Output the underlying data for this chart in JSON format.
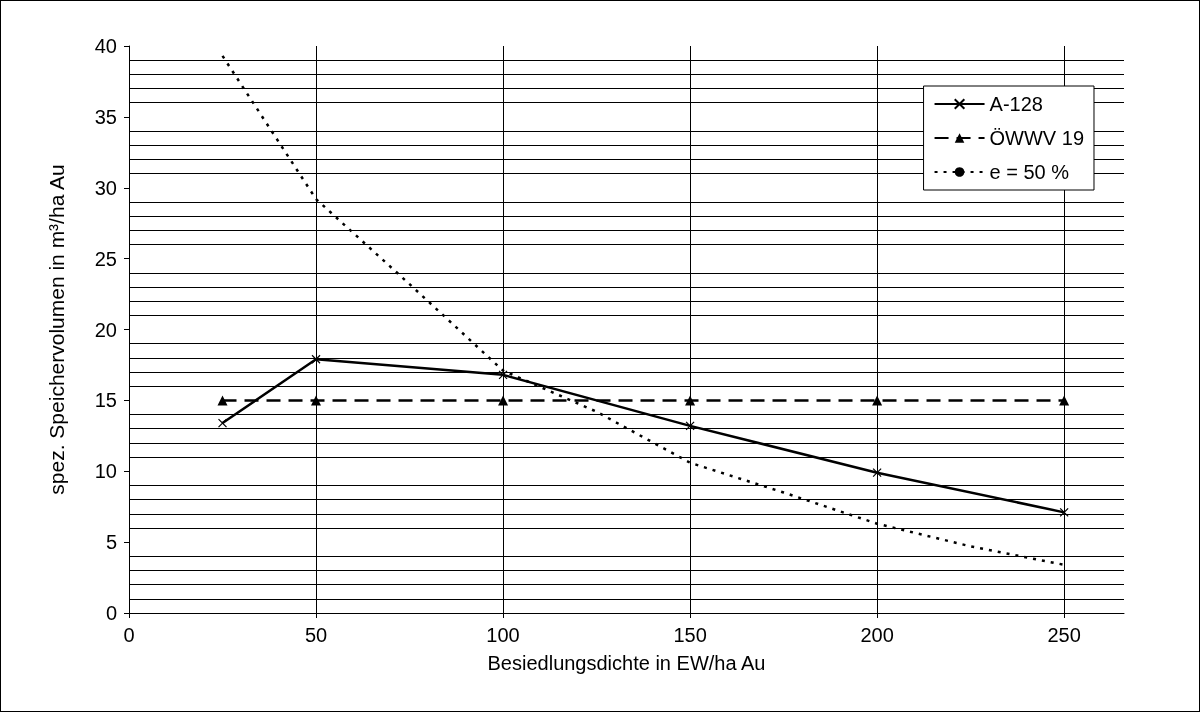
{
  "chart_data": {
    "type": "line",
    "xlabel": "Besiedlungsdichte in EW/ha Au",
    "ylabel": "spez. Speichervolumen in m³/ha Au",
    "xlim": [
      0,
      266
    ],
    "xticks": [
      0,
      50,
      100,
      150,
      200,
      250
    ],
    "ylim": [
      0,
      40
    ],
    "yticks": [
      0,
      5,
      10,
      15,
      20,
      25,
      30,
      35,
      40
    ],
    "grid": true,
    "legend": "top right",
    "series": [
      {
        "name": "A-128",
        "color": "#000000",
        "marker": "cross",
        "line_style": "solid",
        "x": [
          25,
          50,
          100,
          150,
          200,
          250
        ],
        "values": [
          13.4,
          17.9,
          16.8,
          13.2,
          9.9,
          7.1
        ]
      },
      {
        "name": "ÖWWV 19",
        "color": "#000000",
        "marker": "triangle",
        "line_style": "dashed",
        "x": [
          25,
          50,
          100,
          150,
          200,
          250
        ],
        "values": [
          15,
          15,
          15,
          15,
          15,
          15
        ]
      },
      {
        "name": "e = 50 %",
        "color": "#000000",
        "marker": "none",
        "line_style": "dotted",
        "x": [
          25,
          50,
          75,
          100,
          125,
          150,
          175,
          200,
          225,
          250
        ],
        "values": [
          39.3,
          29.2,
          23.2,
          17.1,
          14.2,
          10.6,
          8.5,
          6.3,
          4.7,
          3.4
        ]
      }
    ]
  }
}
